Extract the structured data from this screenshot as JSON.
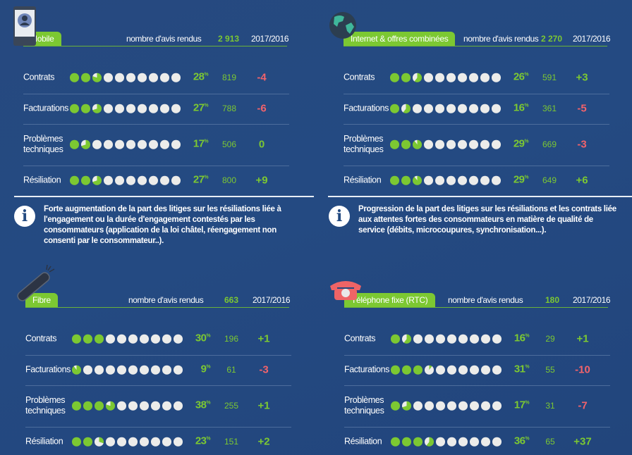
{
  "colors": {
    "accent": "#7cc832",
    "negative": "#f2636b",
    "positive": "#7cc832",
    "empty_dot": "#ececea"
  },
  "common": {
    "count_label": "nombre d'avis rendus",
    "year_label": "2017/2016",
    "percent_sign": "%"
  },
  "chart_data": [
    {
      "type": "table",
      "title": "Mobile",
      "total": "2 913",
      "icon": "smartphone-icon",
      "rows": [
        {
          "label": "Contrats",
          "percent": 28,
          "count": "819",
          "delta": "-4"
        },
        {
          "label": "Facturations",
          "percent": 27,
          "count": "788",
          "delta": "-6"
        },
        {
          "label": "Problèmes techniques",
          "percent": 17,
          "count": "506",
          "delta": "0"
        },
        {
          "label": "Résiliation",
          "percent": 27,
          "count": "800",
          "delta": "+9"
        }
      ]
    },
    {
      "type": "table",
      "title": "Internet & offres combinées",
      "total": "2 270",
      "icon": "globe-icon",
      "rows": [
        {
          "label": "Contrats",
          "percent": 26,
          "count": "591",
          "delta": "+3"
        },
        {
          "label": "Facturations",
          "percent": 16,
          "count": "361",
          "delta": "-5"
        },
        {
          "label": "Problèmes techniques",
          "percent": 29,
          "count": "669",
          "delta": "-3"
        },
        {
          "label": "Résiliation",
          "percent": 29,
          "count": "649",
          "delta": "+6"
        }
      ]
    },
    {
      "type": "table",
      "title": "Fibre",
      "total": "663",
      "icon": "fiber-cable-icon",
      "rows": [
        {
          "label": "Contrats",
          "percent": 30,
          "count": "196",
          "delta": "+1"
        },
        {
          "label": "Facturations",
          "percent": 9,
          "count": "61",
          "delta": "-3"
        },
        {
          "label": "Problèmes techniques",
          "percent": 38,
          "count": "255",
          "delta": "+1"
        },
        {
          "label": "Résiliation",
          "percent": 23,
          "count": "151",
          "delta": "+2"
        }
      ]
    },
    {
      "type": "table",
      "title": "Téléphone fixe (RTC)",
      "total": "180",
      "icon": "telephone-icon",
      "rows": [
        {
          "label": "Contrats",
          "percent": 16,
          "count": "29",
          "delta": "+1"
        },
        {
          "label": "Facturations",
          "percent": 31,
          "count": "55",
          "delta": "-10"
        },
        {
          "label": "Problèmes techniques",
          "percent": 17,
          "count": "31",
          "delta": "-7"
        },
        {
          "label": "Résiliation",
          "percent": 36,
          "count": "65",
          "delta": "+37"
        }
      ]
    }
  ],
  "notes": [
    "Forte augmentation de la part des litiges sur les résiliations liée à l'engagement ou la durée d'engagement contestés par les consommateurs (application de la loi châtel, réengagement non consenti par le consommateur..).",
    "Progression de la part des litiges sur les résiliations et les contrats liée aux attentes fortes des consommateurs en matière de qualité de service (débits, microcoupures, synchronisation...)."
  ],
  "info_glyph": "i"
}
